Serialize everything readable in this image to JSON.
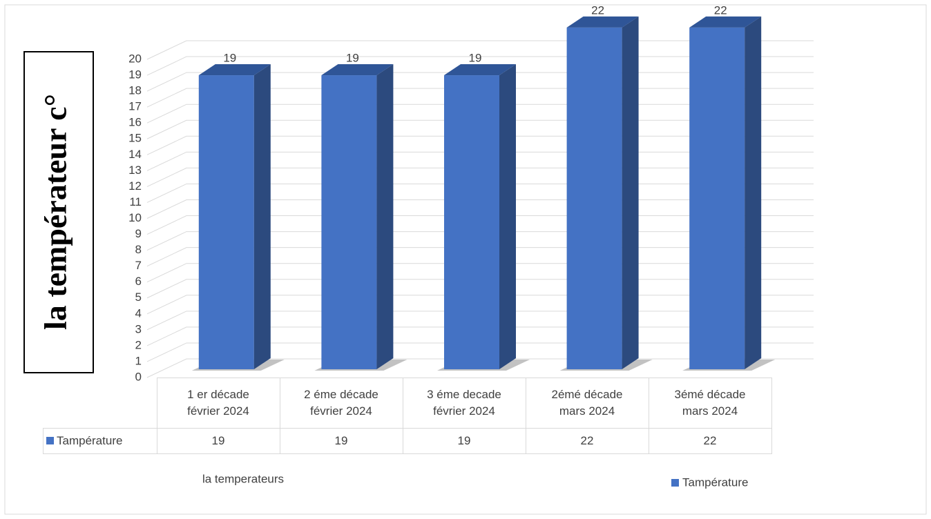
{
  "chart_data": {
    "type": "bar3d",
    "y_label": "la températeur c°",
    "x_label": "la temperateurs",
    "categories": [
      "1 er décade\nfévrier 2024",
      "2 éme décade\nfévrier 2024",
      "3 éme decade\nfévrier  2024",
      "2émé décade\nmars 2024",
      "3émé décade\nmars 2024"
    ],
    "series": [
      {
        "name": "Tampérature",
        "color": "#4472c4",
        "values": [
          19,
          19,
          19,
          22,
          22
        ]
      }
    ],
    "ylim": [
      0,
      22
    ],
    "yticks": [
      0,
      1,
      2,
      3,
      4,
      5,
      6,
      7,
      8,
      9,
      10,
      11,
      12,
      13,
      14,
      15,
      16,
      17,
      18,
      19,
      20
    ],
    "grid": true,
    "legend": "bottom-right",
    "data_table": true
  }
}
